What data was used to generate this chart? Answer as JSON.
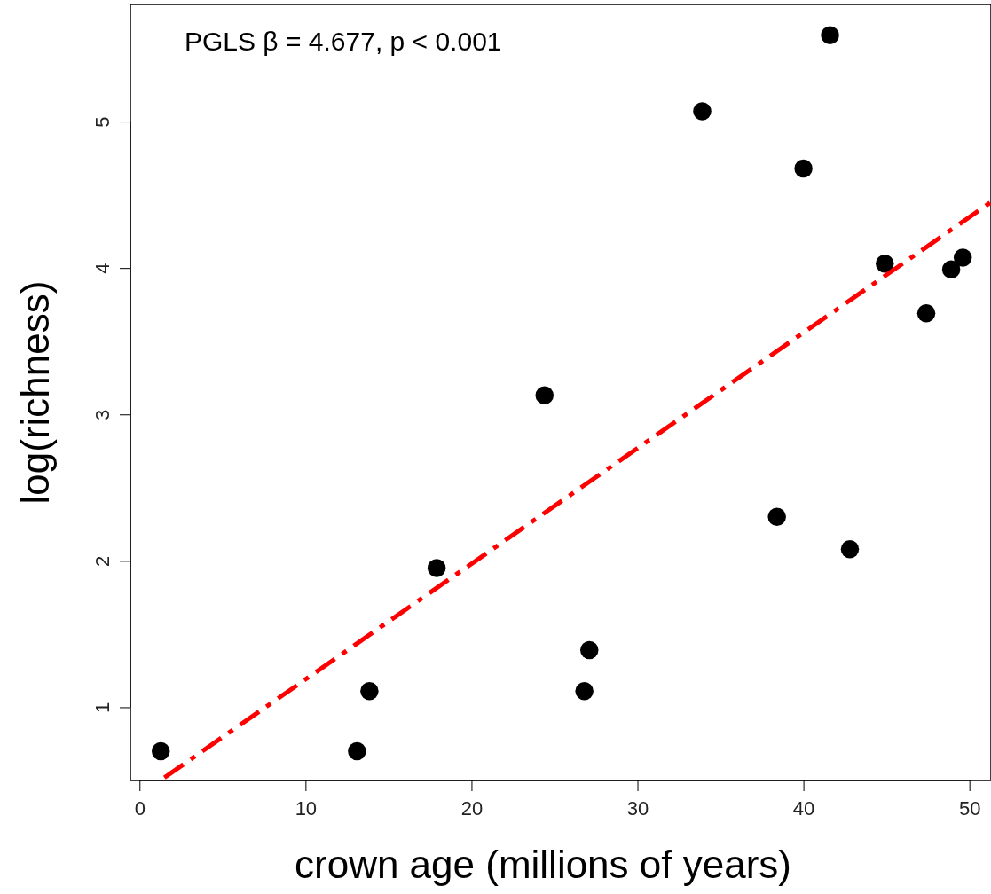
{
  "chart_data": {
    "type": "scatter",
    "xlabel": "crown age (millions of years)",
    "ylabel": "log(richness)",
    "annotations": [
      "PGLS  β  = 4.677,  p  < 0.001"
    ],
    "xlim": [
      -0.55,
      51.3
    ],
    "ylim": [
      0.5,
      5.8
    ],
    "xticks": [
      0,
      10,
      20,
      30,
      40,
      50
    ],
    "yticks": [
      1,
      2,
      3,
      4,
      5
    ],
    "grid": false,
    "marker": "circle",
    "series": [
      {
        "type": "scatter",
        "color": "#000000",
        "x": [
          1.28,
          13.1,
          13.85,
          17.9,
          24.4,
          26.8,
          27.1,
          33.9,
          38.4,
          40.0,
          41.6,
          42.8,
          44.9,
          47.4,
          48.9,
          49.6
        ],
        "values": [
          0.7,
          0.7,
          1.11,
          1.95,
          3.13,
          1.11,
          1.39,
          5.07,
          2.3,
          4.68,
          5.59,
          2.08,
          4.03,
          3.69,
          3.99,
          4.07
        ]
      },
      {
        "type": "line",
        "color": "#ff0000",
        "line_style": "dashed",
        "marker": "none",
        "x": [
          1.5,
          51.3
        ],
        "values": [
          0.52,
          4.45
        ]
      }
    ]
  }
}
